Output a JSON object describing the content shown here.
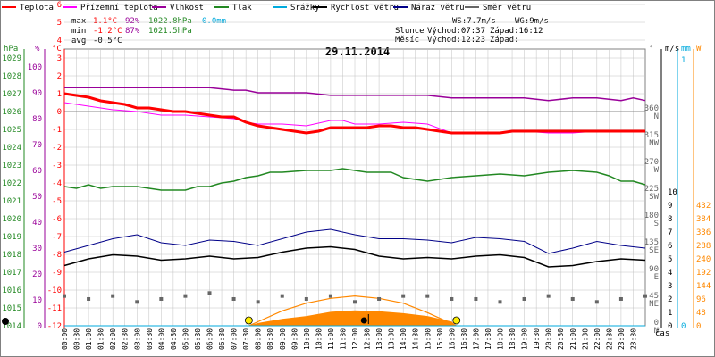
{
  "legend": [
    {
      "name": "Teplota",
      "color": "#ff0000"
    },
    {
      "name": "Přízemní teplota",
      "color": "#ff00ff"
    },
    {
      "name": "Vlhkost",
      "color": "#990099"
    },
    {
      "name": "Tlak",
      "color": "#228822"
    },
    {
      "name": "Srážky",
      "color": "#00aadd"
    },
    {
      "name": "Rychlost větru",
      "color": "#000000"
    },
    {
      "name": "Náraz větru",
      "color": "#000088"
    },
    {
      "name": "Směr větru",
      "color": "#666666"
    }
  ],
  "stats": {
    "max_label": "max",
    "max_temp": "1.1°C",
    "max_hum": "92%",
    "max_press": "1022.8hPa",
    "max_rain": "0.0mm",
    "min_label": "min",
    "min_temp": "-1.2°C",
    "min_hum": "87%",
    "min_press": "1021.5hPa",
    "avg_label": "avg",
    "avg_temp": "-0.5°C"
  },
  "wind": {
    "ws": "WS:7.7m/s",
    "wg": "WG:9m/s",
    "sun_label": "Slunce",
    "sunrise": "Východ:07:37",
    "sunset": "Západ:16:12",
    "moon_label": "Měsíc",
    "moonrise": "Východ:12:23",
    "moonset": "Západ:"
  },
  "date": "29.11.2014",
  "axis_units": {
    "hpa": "hPa",
    "pct": "%",
    "degc": "°C",
    "deg": "°",
    "ms": "m/s",
    "mm": "mm",
    "wm2": "W",
    "time": "čas"
  },
  "colors": {
    "grid": "#c0c0c0",
    "temp": "#ff0000",
    "ground_temp": "#ff00ff",
    "humidity": "#990099",
    "pressure": "#228822",
    "rain": "#00aadd",
    "wind": "#000000",
    "gust": "#000088",
    "direction": "#666666",
    "sun": "#ff8800"
  },
  "chart_data": {
    "type": "line",
    "title": "29.11.2014",
    "x_unit": "time",
    "x_ticks": [
      "00:00",
      "00:30",
      "01:00",
      "01:30",
      "02:00",
      "02:30",
      "03:00",
      "03:30",
      "04:00",
      "04:30",
      "05:00",
      "05:30",
      "06:00",
      "06:30",
      "07:00",
      "07:30",
      "08:00",
      "08:30",
      "09:00",
      "09:30",
      "10:00",
      "10:30",
      "11:00",
      "11:30",
      "12:00",
      "12:30",
      "13:00",
      "13:30",
      "14:00",
      "14:30",
      "15:00",
      "15:30",
      "16:00",
      "16:30",
      "17:00",
      "17:30",
      "18:00",
      "18:30",
      "19:00",
      "19:30",
      "20:00",
      "20:30",
      "21:00",
      "21:30",
      "22:00",
      "22:30",
      "23:00",
      "23:30"
    ],
    "xlabel": "čas",
    "axes": {
      "pressure_hpa": {
        "ticks": [
          1014,
          1015,
          1016,
          1017,
          1018,
          1019,
          1020,
          1021,
          1022,
          1023,
          1024,
          1025,
          1026,
          1027,
          1028,
          1029
        ],
        "range": [
          1014,
          1029.5
        ]
      },
      "humidity_pct": {
        "ticks": [
          0,
          10,
          20,
          30,
          40,
          50,
          60,
          70,
          80,
          90,
          100
        ],
        "range": [
          0,
          102.5
        ]
      },
      "temperature_c": {
        "ticks": [
          -12,
          -11,
          -10,
          -9,
          -8,
          -7,
          -6,
          -5,
          -4,
          -3,
          -2,
          -1,
          0,
          1,
          2,
          3,
          4,
          5,
          6
        ],
        "range": [
          -12,
          6.5
        ]
      },
      "wind_direction": {
        "ticks": [
          {
            "deg": 0,
            "dir": "N"
          },
          {
            "deg": 45,
            "dir": "NE"
          },
          {
            "deg": 90,
            "dir": "E"
          },
          {
            "deg": 135,
            "dir": "SE"
          },
          {
            "deg": 180,
            "dir": "S"
          },
          {
            "deg": 225,
            "dir": "SW"
          },
          {
            "deg": 270,
            "dir": "W"
          },
          {
            "deg": 315,
            "dir": "NW"
          },
          {
            "deg": 360,
            "dir": "N"
          }
        ]
      },
      "wind_ms": {
        "ticks": [
          0,
          1,
          2,
          3,
          4,
          5,
          6,
          7,
          8,
          9,
          10
        ]
      },
      "rain_mm": {
        "ticks": [
          0,
          1
        ]
      },
      "radiation_w": {
        "ticks": [
          0,
          48,
          96,
          144,
          192,
          240,
          288,
          336,
          384,
          432
        ]
      }
    },
    "series": [
      {
        "name": "Teplota",
        "unit": "°C",
        "x": [
          0,
          0.5,
          1,
          1.5,
          2,
          2.5,
          3,
          3.5,
          4,
          4.5,
          5,
          5.5,
          6,
          6.5,
          7,
          7.5,
          8,
          8.5,
          9,
          9.5,
          10,
          10.5,
          11,
          11.5,
          12,
          12.5,
          13,
          13.5,
          14,
          14.5,
          15,
          15.5,
          16,
          16.5,
          17,
          17.5,
          18,
          18.5,
          19,
          19.5,
          20,
          20.5,
          21,
          21.5,
          22,
          22.5,
          23,
          23.5,
          24
        ],
        "values": [
          1.0,
          0.9,
          0.8,
          0.6,
          0.5,
          0.4,
          0.2,
          0.2,
          0.1,
          0.0,
          0.0,
          -0.1,
          -0.2,
          -0.3,
          -0.3,
          -0.6,
          -0.8,
          -0.9,
          -1.0,
          -1.1,
          -1.2,
          -1.1,
          -0.9,
          -0.9,
          -0.9,
          -0.9,
          -0.8,
          -0.8,
          -0.9,
          -0.9,
          -1.0,
          -1.1,
          -1.2,
          -1.2,
          -1.2,
          -1.2,
          -1.2,
          -1.1,
          -1.1,
          -1.1,
          -1.1,
          -1.1,
          -1.1,
          -1.1,
          -1.1,
          -1.1,
          -1.1,
          -1.1,
          -1.1
        ]
      },
      {
        "name": "Přízemní teplota",
        "unit": "°C",
        "x": [
          0,
          1,
          2,
          3,
          4,
          5,
          6,
          7,
          7.5,
          8,
          9,
          10,
          11,
          11.5,
          12,
          13,
          14,
          15,
          16,
          17,
          18,
          19,
          20,
          21,
          22,
          23,
          24
        ],
        "values": [
          0.5,
          0.3,
          0.1,
          0.0,
          -0.2,
          -0.2,
          -0.3,
          -0.4,
          -0.6,
          -0.7,
          -0.7,
          -0.8,
          -0.5,
          -0.5,
          -0.7,
          -0.7,
          -0.6,
          -0.7,
          -1.2,
          -1.2,
          -1.2,
          -1.1,
          -1.2,
          -1.2,
          -1.1,
          -1.1,
          -1.1
        ]
      },
      {
        "name": "Vlhkost",
        "unit": "%",
        "x": [
          0,
          1,
          2,
          3,
          4,
          5,
          6,
          7,
          7.5,
          8,
          9,
          10,
          11,
          12,
          13,
          14,
          15,
          16,
          17,
          18,
          19,
          20,
          21,
          22,
          23,
          23.5,
          24
        ],
        "values": [
          92,
          92,
          92,
          92,
          92,
          92,
          92,
          91,
          91,
          90,
          90,
          90,
          89,
          89,
          89,
          89,
          89,
          88,
          88,
          88,
          88,
          87,
          88,
          88,
          87,
          88,
          87
        ]
      },
      {
        "name": "Tlak",
        "unit": "hPa",
        "x": [
          0,
          0.5,
          1,
          1.5,
          2,
          3,
          4,
          5,
          5.5,
          6,
          6.5,
          7,
          7.5,
          8,
          8.5,
          9,
          10,
          11,
          11.5,
          12,
          12.5,
          13,
          13.5,
          14,
          15,
          16,
          17,
          18,
          19,
          20,
          21,
          22,
          22.5,
          23,
          23.5,
          24
        ],
        "values": [
          1021.8,
          1021.7,
          1021.9,
          1021.7,
          1021.8,
          1021.8,
          1021.6,
          1021.6,
          1021.8,
          1021.8,
          1022.0,
          1022.1,
          1022.3,
          1022.4,
          1022.6,
          1022.6,
          1022.7,
          1022.7,
          1022.8,
          1022.7,
          1022.6,
          1022.6,
          1022.6,
          1022.3,
          1022.1,
          1022.3,
          1022.4,
          1022.5,
          1022.4,
          1022.6,
          1022.7,
          1022.6,
          1022.4,
          1022.1,
          1022.1,
          1021.9
        ]
      },
      {
        "name": "Srážky",
        "unit": "mm",
        "x": [
          0,
          24
        ],
        "values": [
          0.0,
          0.0
        ]
      },
      {
        "name": "Rychlost větru",
        "unit": "m/s",
        "x": [
          0,
          1,
          2,
          3,
          4,
          5,
          6,
          7,
          8,
          9,
          10,
          11,
          12,
          13,
          14,
          15,
          16,
          17,
          18,
          19,
          20,
          21,
          22,
          23,
          24
        ],
        "values": [
          4.5,
          5.0,
          5.3,
          5.2,
          4.9,
          5.0,
          5.2,
          5.0,
          5.1,
          5.5,
          5.8,
          5.9,
          5.7,
          5.2,
          5.0,
          5.1,
          5.0,
          5.2,
          5.3,
          5.1,
          4.4,
          4.5,
          4.8,
          5.0,
          4.9
        ]
      },
      {
        "name": "Náraz větru",
        "unit": "m/s",
        "x": [
          0,
          1,
          2,
          3,
          4,
          5,
          6,
          7,
          8,
          9,
          10,
          11,
          12,
          13,
          14,
          15,
          16,
          17,
          18,
          19,
          20,
          21,
          22,
          23,
          24
        ],
        "values": [
          5.5,
          6.0,
          6.5,
          6.8,
          6.2,
          6.0,
          6.4,
          6.3,
          6.0,
          6.5,
          7.0,
          7.2,
          6.8,
          6.5,
          6.5,
          6.4,
          6.2,
          6.6,
          6.5,
          6.3,
          5.4,
          5.8,
          6.3,
          6.0,
          5.8
        ]
      },
      {
        "name": "Směr větru",
        "unit": "°",
        "type": "scatter",
        "x": [
          0,
          1,
          2,
          3,
          4,
          5,
          6,
          7,
          8,
          9,
          10,
          11,
          12,
          13,
          14,
          15,
          16,
          17,
          18,
          19,
          20,
          21,
          22,
          23,
          24
        ],
        "values": [
          50,
          45,
          50,
          40,
          45,
          50,
          55,
          45,
          40,
          50,
          45,
          50,
          40,
          45,
          50,
          50,
          45,
          45,
          40,
          45,
          50,
          45,
          40,
          45,
          50
        ]
      },
      {
        "name": "Slunce",
        "unit": "°",
        "x": [
          7.62,
          9,
          10,
          11,
          12,
          13,
          14,
          15,
          16.2
        ],
        "values": [
          0,
          25,
          38,
          46,
          50,
          46,
          38,
          22,
          0
        ]
      },
      {
        "name": "Sluneční záření",
        "unit": "W",
        "type": "area",
        "x": [
          7.6,
          8,
          9,
          10,
          11,
          12,
          13,
          14,
          15,
          16,
          16.2
        ],
        "values": [
          0,
          10,
          25,
          35,
          50,
          55,
          52,
          45,
          35,
          15,
          0
        ]
      }
    ],
    "annotations": [
      {
        "label": "Východ:07:37",
        "x": 7.62
      },
      {
        "label": "Západ:16:12",
        "x": 16.2
      },
      {
        "label": "Východ:12:23",
        "x": 12.38
      }
    ],
    "grid": true,
    "legend_position": "top"
  }
}
